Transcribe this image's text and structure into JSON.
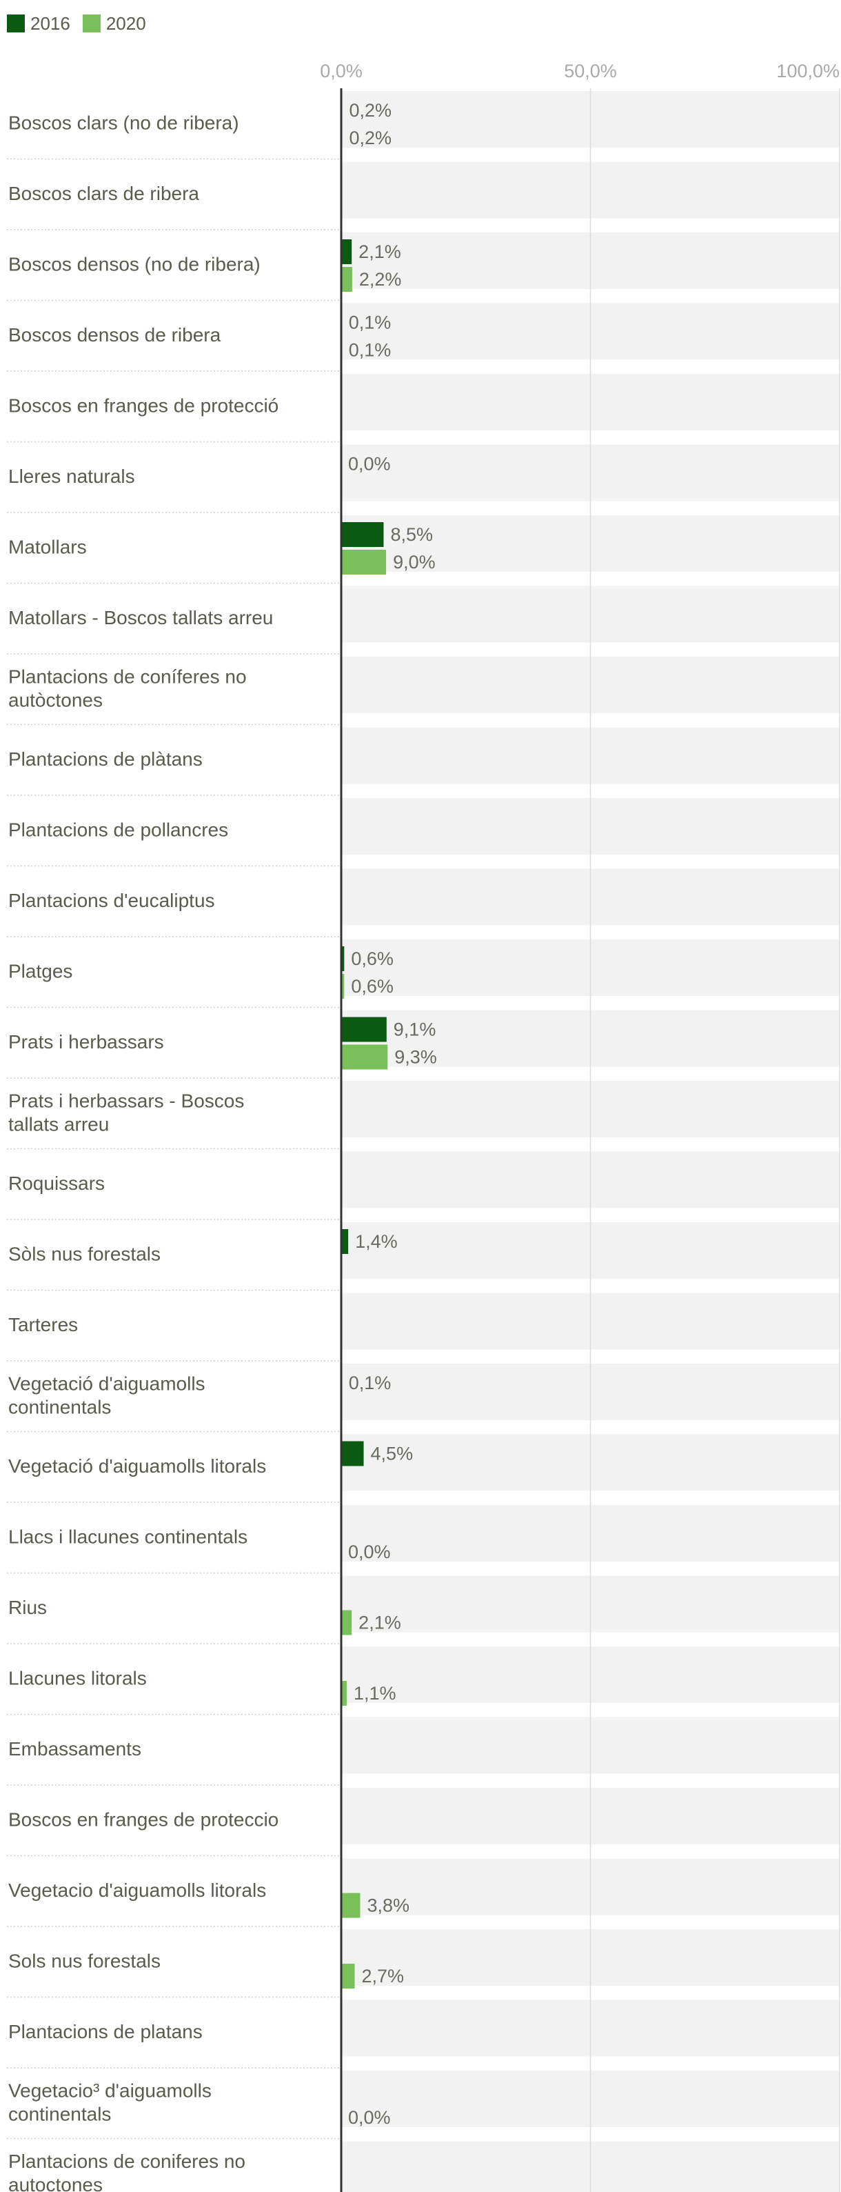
{
  "colors": {
    "series_2016": "#0b5a12",
    "series_2020": "#79c05a",
    "row_bg": "#f2f2f2",
    "axis": "#333333",
    "grid": "#dcdcdc"
  },
  "chart_data": {
    "type": "bar",
    "orientation": "horizontal",
    "title": "",
    "xlabel": "",
    "ylabel": "",
    "xlim": [
      0,
      100
    ],
    "ticks": [
      0,
      50,
      100
    ],
    "tick_labels": [
      "0,0%",
      "50,0%",
      "100,0%"
    ],
    "legend": {
      "position": "top-left",
      "entries": [
        "2016",
        "2020"
      ]
    },
    "categories": [
      "Boscos clars (no de ribera)",
      "Boscos clars de ribera",
      "Boscos densos (no de ribera)",
      "Boscos densos de ribera",
      "Boscos en franges de protecció",
      "Lleres naturals",
      "Matollars",
      "Matollars - Boscos tallats arreu",
      "Plantacions de coníferes no autòctones",
      "Plantacions de plàtans",
      "Plantacions de pollancres",
      "Plantacions d'eucaliptus",
      "Platges",
      "Prats i herbassars",
      "Prats i herbassars - Boscos tallats arreu",
      "Roquissars",
      "Sòls nus forestals",
      "Tarteres",
      "Vegetació d'aiguamolls continentals",
      "Vegetació d'aiguamolls litorals",
      "Llacs i llacunes continentals",
      "Rius",
      "Llacunes litorals",
      "Embassaments",
      "Boscos en franges de proteccio",
      "Vegetacio d'aiguamolls litorals",
      "Sols nus forestals",
      "Plantacions de platans",
      "Vegetacio³ d'aiguamolls continentals",
      "Plantacions de coniferes no autoctones"
    ],
    "series": [
      {
        "name": "2016",
        "values": [
          0.2,
          null,
          2.1,
          0.1,
          null,
          0.0,
          8.5,
          null,
          null,
          null,
          null,
          null,
          0.6,
          9.1,
          null,
          null,
          1.4,
          null,
          0.1,
          4.5,
          null,
          null,
          null,
          null,
          null,
          null,
          null,
          null,
          null,
          null
        ],
        "labels": [
          "0,2%",
          "",
          "2,1%",
          "0,1%",
          "",
          "0,0%",
          "8,5%",
          "",
          "",
          "",
          "",
          "",
          "0,6%",
          "9,1%",
          "",
          "",
          "1,4%",
          "",
          "0,1%",
          "4,5%",
          "",
          "",
          "",
          "",
          "",
          "",
          "",
          "",
          "",
          ""
        ]
      },
      {
        "name": "2020",
        "values": [
          0.2,
          null,
          2.2,
          0.1,
          null,
          null,
          9.0,
          null,
          null,
          null,
          null,
          null,
          0.6,
          9.3,
          null,
          null,
          null,
          null,
          null,
          null,
          0.0,
          2.1,
          1.1,
          null,
          null,
          3.8,
          2.7,
          null,
          0.0,
          null
        ],
        "labels": [
          "0,2%",
          "",
          "2,2%",
          "0,1%",
          "",
          "",
          "9,0%",
          "",
          "",
          "",
          "",
          "",
          "0,6%",
          "9,3%",
          "",
          "",
          "",
          "",
          "",
          "",
          "0,0%",
          "2,1%",
          "1,1%",
          "",
          "",
          "3,8%",
          "2,7%",
          "",
          "0,0%",
          ""
        ]
      }
    ]
  }
}
